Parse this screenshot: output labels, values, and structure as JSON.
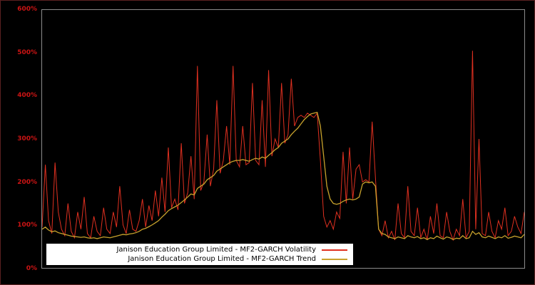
{
  "colors": {
    "background": "#000000",
    "figure_border": "#5a2020",
    "plot_border": "#8c8c8c",
    "tick_label": "#cc1414",
    "legend_background": "#ffffff",
    "legend_text": "#000000"
  },
  "chart_data": {
    "type": "line",
    "title": "",
    "xlabel": "",
    "ylabel": "",
    "ylim": [
      0,
      600
    ],
    "grid": false,
    "x_axis_labels_visible": false,
    "legend_position": "bottom-left-inside",
    "yticks": [
      {
        "value": 0,
        "label": "0%"
      },
      {
        "value": 100,
        "label": "100%"
      },
      {
        "value": 200,
        "label": "200%"
      },
      {
        "value": 300,
        "label": "300%"
      },
      {
        "value": 400,
        "label": "400%"
      },
      {
        "value": 500,
        "label": "500%"
      },
      {
        "value": 600,
        "label": "600%"
      }
    ],
    "series": [
      {
        "name": "Janison Education Group Limited - MF2-GARCH Volatility",
        "color": "#e03020",
        "unit": "%",
        "values": [
          95,
          240,
          110,
          80,
          245,
          130,
          90,
          75,
          150,
          85,
          70,
          130,
          90,
          165,
          80,
          70,
          120,
          85,
          75,
          140,
          90,
          80,
          130,
          95,
          190,
          100,
          80,
          135,
          90,
          85,
          110,
          160,
          95,
          145,
          110,
          180,
          120,
          210,
          130,
          280,
          140,
          160,
          135,
          290,
          150,
          175,
          260,
          160,
          470,
          180,
          200,
          310,
          190,
          230,
          390,
          220,
          250,
          330,
          240,
          470,
          250,
          235,
          330,
          240,
          245,
          430,
          250,
          240,
          390,
          235,
          460,
          260,
          300,
          280,
          430,
          290,
          310,
          440,
          330,
          350,
          355,
          350,
          360,
          355,
          350,
          360,
          250,
          120,
          95,
          110,
          90,
          130,
          115,
          270,
          150,
          280,
          160,
          230,
          240,
          200,
          205,
          200,
          340,
          210,
          90,
          75,
          110,
          70,
          85,
          65,
          150,
          80,
          70,
          190,
          85,
          75,
          140,
          70,
          90,
          65,
          120,
          80,
          150,
          75,
          70,
          130,
          85,
          65,
          90,
          75,
          160,
          70,
          85,
          505,
          90,
          300,
          80,
          75,
          130,
          85,
          70,
          110,
          90,
          140,
          75,
          85,
          120,
          95,
          80,
          130
        ]
      },
      {
        "name": "Janison Education Group Limited - MF2-GARCH Trend",
        "color": "#c8a22c",
        "unit": "%",
        "values": [
          90,
          95,
          88,
          84,
          86,
          82,
          80,
          78,
          76,
          74,
          73,
          72,
          71,
          72,
          70,
          69,
          70,
          68,
          70,
          72,
          71,
          70,
          72,
          74,
          76,
          78,
          77,
          79,
          80,
          82,
          85,
          90,
          92,
          96,
          100,
          105,
          110,
          118,
          125,
          133,
          138,
          142,
          146,
          152,
          158,
          165,
          172,
          170,
          185,
          190,
          195,
          205,
          210,
          215,
          225,
          230,
          235,
          240,
          245,
          248,
          250,
          250,
          252,
          250,
          248,
          252,
          255,
          253,
          258,
          255,
          262,
          268,
          275,
          280,
          290,
          295,
          300,
          310,
          318,
          325,
          335,
          345,
          352,
          358,
          360,
          362,
          330,
          260,
          190,
          160,
          150,
          148,
          150,
          155,
          158,
          160,
          158,
          160,
          165,
          195,
          200,
          198,
          200,
          190,
          90,
          80,
          78,
          72,
          70,
          68,
          72,
          70,
          68,
          75,
          72,
          70,
          73,
          68,
          70,
          66,
          70,
          68,
          74,
          70,
          67,
          72,
          70,
          66,
          69,
          68,
          75,
          68,
          70,
          85,
          78,
          82,
          72,
          70,
          74,
          71,
          68,
          72,
          70,
          75,
          69,
          71,
          74,
          72,
          70,
          78
        ]
      }
    ]
  }
}
